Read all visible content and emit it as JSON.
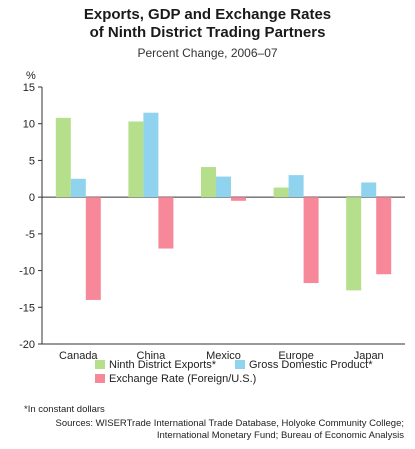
{
  "chart_data": {
    "type": "bar",
    "title_line1": "Exports, GDP and Exchange Rates",
    "title_line2": "of Ninth District Trading Partners",
    "subtitle": "Percent Change, 2006–07",
    "ylabel": "%",
    "ylim": [
      -20,
      15
    ],
    "yticks": [
      15,
      10,
      5,
      0,
      -5,
      -10,
      -15,
      -20
    ],
    "categories": [
      "Canada",
      "China",
      "Mexico",
      "Europe",
      "Japan"
    ],
    "series": [
      {
        "name": "Ninth District Exports*",
        "color": "#b5df8a",
        "values": [
          10.8,
          10.3,
          4.1,
          1.3,
          -12.7
        ]
      },
      {
        "name": "Gross Domestic Product*",
        "color": "#8fd3ee",
        "values": [
          2.5,
          11.5,
          2.8,
          3.0,
          2.0
        ]
      },
      {
        "name": "Exchange Rate (Foreign/U.S.)",
        "color": "#f7889a",
        "values": [
          -14.0,
          -7.0,
          -0.5,
          -11.7,
          -10.5
        ]
      }
    ],
    "grid": false,
    "legend_placement": "bottom"
  },
  "footnote": "*In constant dollars",
  "sources": [
    "Sources: WISERTrade International Trade Database, Holyoke Community College;",
    "International Monetary Fund; Bureau of Economic Analysis"
  ]
}
